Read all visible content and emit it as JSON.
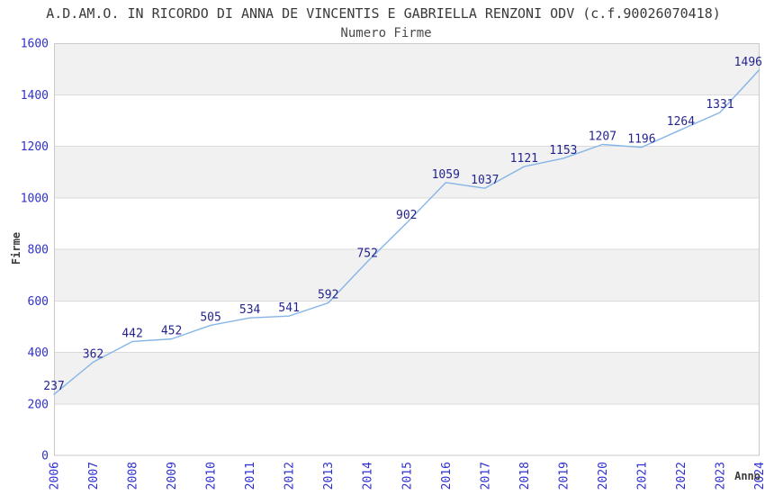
{
  "chart_data": {
    "type": "line",
    "title": "A.D.AM.O. IN RICORDO DI ANNA DE VINCENTIS E GABRIELLA RENZONI ODV (c.f.90026070418)",
    "subtitle": "Numero Firme",
    "xlabel": "Anno",
    "ylabel": "Firme",
    "categories": [
      "2006",
      "2007",
      "2008",
      "2009",
      "2010",
      "2011",
      "2012",
      "2013",
      "2014",
      "2015",
      "2016",
      "2017",
      "2018",
      "2019",
      "2020",
      "2021",
      "2022",
      "2023",
      "2024"
    ],
    "values": [
      237,
      362,
      442,
      452,
      505,
      534,
      541,
      592,
      752,
      902,
      1059,
      1037,
      1121,
      1153,
      1207,
      1196,
      1264,
      1331,
      1496
    ],
    "ylim": [
      0,
      1600
    ],
    "ytick_step": 200,
    "grid": true,
    "legend": false,
    "band_shading": "alternating horizontal bands, gray topmost",
    "x_tick_rotation": -90,
    "colors": {
      "line": "#85b5e8",
      "tick_labels": "#3030cf",
      "data_labels": "#24248f",
      "band": "#f1f1f1",
      "gridline": "#dadada",
      "plot_border": "#c9c9c9",
      "title": "#3a3a3a",
      "axis_labels": "#3c3c3c",
      "background": "#ffffff"
    }
  }
}
